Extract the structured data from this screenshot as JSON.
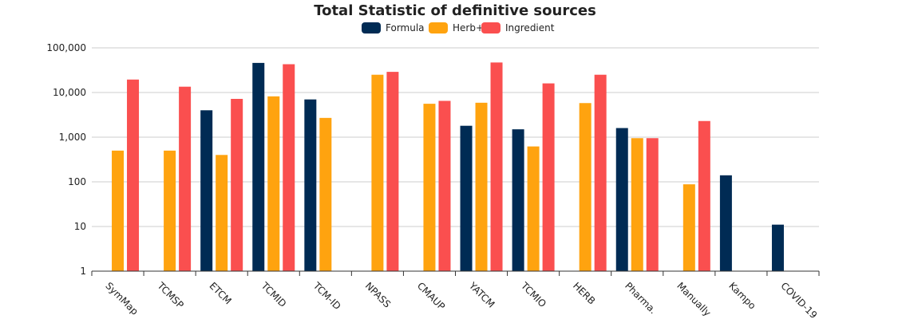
{
  "chart_data": {
    "type": "bar",
    "title": "Total Statistic of definitive sources",
    "xlabel": "",
    "ylabel": "",
    "y_scale": "log",
    "ylim": [
      1,
      100000
    ],
    "y_ticks": [
      1,
      10,
      100,
      1000,
      10000,
      100000
    ],
    "y_tick_labels": [
      "1",
      "10",
      "100",
      "1,000",
      "10,000",
      "100,000"
    ],
    "grid": true,
    "legend_position": "top-center",
    "categories": [
      "SymMap",
      "TCMSP",
      "ETCM",
      "TCMID",
      "TCM-ID",
      "NPASS",
      "CMAUP",
      "YATCM",
      "TCMIO",
      "HERB",
      "Pharma.",
      "Manually",
      "Kampo",
      "COVID-19"
    ],
    "series": [
      {
        "name": "Formula",
        "color": "#002b54",
        "values": [
          null,
          null,
          4000,
          46000,
          7000,
          null,
          null,
          1800,
          1500,
          null,
          1600,
          null,
          140,
          11
        ]
      },
      {
        "name": "Herb+",
        "color": "#ffa30f",
        "values": [
          500,
          500,
          400,
          8200,
          2700,
          25000,
          5600,
          5900,
          620,
          5800,
          950,
          88,
          null,
          null
        ]
      },
      {
        "name": "Ingredient",
        "color": "#fa4f4f",
        "values": [
          19500,
          13500,
          7200,
          43000,
          null,
          29000,
          6500,
          47000,
          16000,
          25000,
          950,
          2300,
          null,
          null
        ]
      }
    ]
  }
}
